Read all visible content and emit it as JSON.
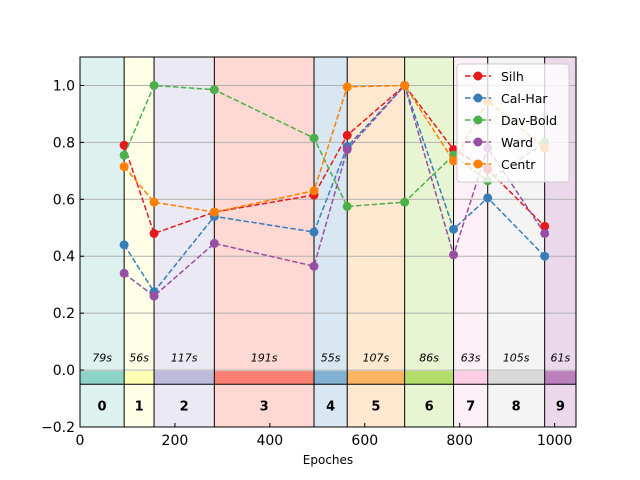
{
  "chart_data": {
    "type": "line",
    "title": "",
    "xlabel": "Epoches",
    "ylabel": "",
    "xlim": [
      0,
      1045
    ],
    "ylim": [
      -0.2,
      1.1
    ],
    "x_ticks": [
      0,
      200,
      400,
      600,
      800,
      1000
    ],
    "x_tick_labels": [
      "0",
      "200",
      "400",
      "600",
      "800",
      "1000"
    ],
    "y_ticks": [
      -0.2,
      0.0,
      0.2,
      0.4,
      0.6,
      0.8,
      1.0
    ],
    "y_tick_labels": [
      "−0.2",
      "0.0",
      "0.2",
      "0.4",
      "0.6",
      "0.8",
      "1.0"
    ],
    "grid": "horizontal",
    "legend": "top-right",
    "segments": [
      {
        "start": 0,
        "end": 93,
        "label": "0",
        "duration": "79s",
        "color": "#8dd3c7"
      },
      {
        "start": 93,
        "end": 156,
        "label": "1",
        "duration": "56s",
        "color": "#ffffb3"
      },
      {
        "start": 156,
        "end": 283,
        "label": "2",
        "duration": "117s",
        "color": "#bebada"
      },
      {
        "start": 283,
        "end": 493,
        "label": "3",
        "duration": "191s",
        "color": "#fb8072"
      },
      {
        "start": 493,
        "end": 563,
        "label": "4",
        "duration": "55s",
        "color": "#80b1d3"
      },
      {
        "start": 563,
        "end": 684,
        "label": "5",
        "duration": "107s",
        "color": "#fdb462"
      },
      {
        "start": 684,
        "end": 787,
        "label": "6",
        "duration": "86s",
        "color": "#b3de69"
      },
      {
        "start": 787,
        "end": 859,
        "label": "7",
        "duration": "63s",
        "color": "#fccde5"
      },
      {
        "start": 859,
        "end": 979,
        "label": "8",
        "duration": "105s",
        "color": "#d9d9d9"
      },
      {
        "start": 979,
        "end": 1045,
        "label": "9",
        "duration": "61s",
        "color": "#bc80bd"
      }
    ],
    "x": [
      93,
      156,
      283,
      493,
      563,
      684,
      787,
      859,
      979
    ],
    "series": [
      {
        "name": "Silh",
        "color": "#e41a1c",
        "values": [
          0.79,
          0.48,
          0.555,
          0.615,
          0.825,
          1.0,
          0.775,
          0.705,
          0.505
        ]
      },
      {
        "name": "Cal-Har",
        "color": "#377eb8",
        "values": [
          0.44,
          0.275,
          0.54,
          0.485,
          0.785,
          1.0,
          0.495,
          0.605,
          0.4
        ]
      },
      {
        "name": "Dav-Bold",
        "color": "#4daf4a",
        "values": [
          0.755,
          1.0,
          0.985,
          0.815,
          0.575,
          0.59,
          0.755,
          0.665,
          0.8
        ]
      },
      {
        "name": "Ward",
        "color": "#984ea3",
        "values": [
          0.34,
          0.26,
          0.445,
          0.365,
          0.775,
          1.0,
          0.405,
          0.78,
          0.48
        ]
      },
      {
        "name": "Centr",
        "color": "#ff7f00",
        "values": [
          0.715,
          0.59,
          0.555,
          0.63,
          0.995,
          1.0,
          0.735,
          0.945,
          0.78
        ]
      }
    ]
  }
}
